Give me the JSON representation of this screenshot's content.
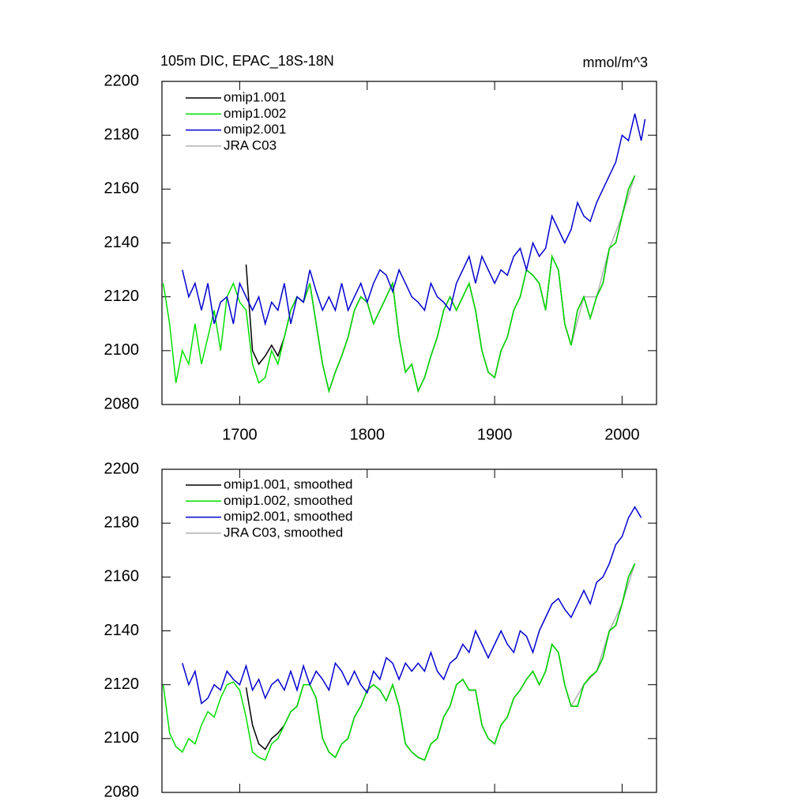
{
  "chart_data": [
    {
      "type": "line",
      "title": "105m DIC, EPAC_18S-18N",
      "units": "mmol/m^3",
      "xlim": [
        1639,
        2027
      ],
      "xticks": [
        1700,
        1800,
        1900,
        2000
      ],
      "ylim": [
        2080,
        2200
      ],
      "yticks": [
        2080,
        2100,
        2120,
        2140,
        2160,
        2180,
        2200
      ],
      "series": [
        {
          "name": "omip1.001",
          "color": "#000000",
          "x": [
            1705,
            1710,
            1715,
            1720,
            1725,
            1730,
            1735,
            1740,
            1745,
            1750,
            1755,
            1760,
            1765,
            1770,
            1775,
            1780,
            1785,
            1790,
            1795,
            1800,
            1805,
            1810,
            1815,
            1820,
            1825,
            1830,
            1835,
            1840,
            1845,
            1850,
            1855,
            1860,
            1865,
            1870,
            1875,
            1880,
            1885,
            1890,
            1895,
            1900,
            1905,
            1910,
            1915,
            1920,
            1925,
            1930,
            1935,
            1940,
            1945,
            1950,
            1955,
            1960,
            1965,
            1970,
            1975,
            1980,
            1985,
            1990,
            1995,
            2000,
            2005,
            2010
          ],
          "values": [
            2132,
            2100,
            2095,
            2098,
            2102,
            2098,
            2105,
            2115,
            2120,
            2118,
            2125,
            2110,
            2095,
            2085,
            2092,
            2098,
            2105,
            2115,
            2120,
            2118,
            2110,
            2115,
            2120,
            2125,
            2105,
            2092,
            2095,
            2085,
            2090,
            2098,
            2105,
            2115,
            2120,
            2115,
            2120,
            2125,
            2115,
            2100,
            2092,
            2090,
            2100,
            2105,
            2115,
            2120,
            2130,
            2128,
            2125,
            2115,
            2135,
            2130,
            2110,
            2102,
            2115,
            2120,
            2112,
            2120,
            2125,
            2138,
            2140,
            2150,
            2160,
            2165
          ]
        },
        {
          "name": "omip1.002",
          "color": "#00e000",
          "x": [
            1640,
            1645,
            1650,
            1655,
            1660,
            1665,
            1670,
            1675,
            1680,
            1685,
            1690,
            1695,
            1700,
            1705,
            1710,
            1715,
            1720,
            1725,
            1730,
            1735,
            1740,
            1745,
            1750,
            1755,
            1760,
            1765,
            1770,
            1775,
            1780,
            1785,
            1790,
            1795,
            1800,
            1805,
            1810,
            1815,
            1820,
            1825,
            1830,
            1835,
            1840,
            1845,
            1850,
            1855,
            1860,
            1865,
            1870,
            1875,
            1880,
            1885,
            1890,
            1895,
            1900,
            1905,
            1910,
            1915,
            1920,
            1925,
            1930,
            1935,
            1940,
            1945,
            1950,
            1955,
            1960,
            1965,
            1970,
            1975,
            1980,
            1985,
            1990,
            1995,
            2000,
            2005,
            2010
          ],
          "values": [
            2125,
            2110,
            2088,
            2100,
            2095,
            2110,
            2095,
            2105,
            2115,
            2100,
            2120,
            2125,
            2118,
            2115,
            2095,
            2088,
            2090,
            2100,
            2095,
            2105,
            2115,
            2120,
            2118,
            2125,
            2110,
            2095,
            2085,
            2092,
            2098,
            2105,
            2115,
            2120,
            2118,
            2110,
            2115,
            2120,
            2125,
            2105,
            2092,
            2095,
            2085,
            2090,
            2098,
            2105,
            2115,
            2120,
            2115,
            2120,
            2125,
            2115,
            2100,
            2092,
            2090,
            2100,
            2105,
            2115,
            2120,
            2130,
            2128,
            2125,
            2115,
            2135,
            2130,
            2110,
            2102,
            2115,
            2120,
            2112,
            2120,
            2125,
            2138,
            2140,
            2150,
            2160,
            2165
          ]
        },
        {
          "name": "omip2.001",
          "color": "#0000d0",
          "x": [
            1655,
            1660,
            1665,
            1670,
            1675,
            1680,
            1685,
            1690,
            1695,
            1700,
            1705,
            1710,
            1715,
            1720,
            1725,
            1730,
            1735,
            1740,
            1745,
            1750,
            1755,
            1760,
            1765,
            1770,
            1775,
            1780,
            1785,
            1790,
            1795,
            1800,
            1805,
            1810,
            1815,
            1820,
            1825,
            1830,
            1835,
            1840,
            1845,
            1850,
            1855,
            1860,
            1865,
            1870,
            1875,
            1880,
            1885,
            1890,
            1895,
            1900,
            1905,
            1910,
            1915,
            1920,
            1925,
            1930,
            1935,
            1940,
            1945,
            1950,
            1955,
            1960,
            1965,
            1970,
            1975,
            1980,
            1985,
            1990,
            1995,
            2000,
            2005,
            2010,
            2015,
            2018
          ],
          "values": [
            2130,
            2120,
            2125,
            2115,
            2125,
            2110,
            2118,
            2120,
            2110,
            2125,
            2120,
            2115,
            2120,
            2110,
            2118,
            2115,
            2125,
            2110,
            2120,
            2118,
            2130,
            2122,
            2115,
            2120,
            2115,
            2125,
            2115,
            2120,
            2125,
            2118,
            2125,
            2130,
            2128,
            2122,
            2130,
            2125,
            2120,
            2118,
            2115,
            2125,
            2120,
            2118,
            2115,
            2125,
            2130,
            2135,
            2125,
            2135,
            2130,
            2125,
            2130,
            2128,
            2135,
            2138,
            2130,
            2140,
            2135,
            2138,
            2150,
            2145,
            2140,
            2145,
            2155,
            2150,
            2148,
            2155,
            2160,
            2165,
            2170,
            2180,
            2178,
            2188,
            2178,
            2186
          ]
        },
        {
          "name": "JRA C03",
          "color": "#b0b0b0",
          "x": [
            1960,
            1970,
            1980,
            1990,
            2000,
            2010
          ],
          "values": [
            2102,
            2120,
            2120,
            2138,
            2150,
            2165
          ]
        }
      ]
    },
    {
      "type": "line",
      "xlim": [
        1639,
        2027
      ],
      "xticks": [
        1700,
        1800,
        1900,
        2000
      ],
      "ylim": [
        2080,
        2200
      ],
      "yticks": [
        2080,
        2100,
        2120,
        2140,
        2160,
        2180,
        2200
      ],
      "series": [
        {
          "name": "omip1.001, smoothed",
          "color": "#000000",
          "x": [
            1705,
            1710,
            1715,
            1720,
            1725,
            1730,
            1735,
            1740,
            1745,
            1750,
            1755,
            1760,
            1765,
            1770,
            1775,
            1780,
            1785,
            1790,
            1795,
            1800,
            1805,
            1810,
            1815,
            1820,
            1825,
            1830,
            1835,
            1840,
            1845,
            1850,
            1855,
            1860,
            1865,
            1870,
            1875,
            1880,
            1885,
            1890,
            1895,
            1900,
            1905,
            1910,
            1915,
            1920,
            1925,
            1930,
            1935,
            1940,
            1945,
            1950,
            1955,
            1960,
            1965,
            1970,
            1975,
            1980,
            1985,
            1990,
            1995,
            2000,
            2005,
            2010
          ],
          "values": [
            2119,
            2105,
            2098,
            2096,
            2100,
            2102,
            2105,
            2110,
            2112,
            2120,
            2120,
            2115,
            2100,
            2095,
            2093,
            2098,
            2100,
            2108,
            2112,
            2118,
            2120,
            2118,
            2114,
            2120,
            2112,
            2098,
            2095,
            2093,
            2092,
            2098,
            2100,
            2108,
            2112,
            2120,
            2122,
            2118,
            2118,
            2105,
            2100,
            2098,
            2105,
            2108,
            2115,
            2118,
            2122,
            2125,
            2120,
            2125,
            2135,
            2132,
            2120,
            2112,
            2112,
            2120,
            2123,
            2125,
            2130,
            2140,
            2142,
            2150,
            2160,
            2165
          ]
        },
        {
          "name": "omip1.002, smoothed",
          "color": "#00e000",
          "x": [
            1640,
            1645,
            1650,
            1655,
            1660,
            1665,
            1670,
            1675,
            1680,
            1685,
            1690,
            1695,
            1700,
            1705,
            1710,
            1715,
            1720,
            1725,
            1730,
            1735,
            1740,
            1745,
            1750,
            1755,
            1760,
            1765,
            1770,
            1775,
            1780,
            1785,
            1790,
            1795,
            1800,
            1805,
            1810,
            1815,
            1820,
            1825,
            1830,
            1835,
            1840,
            1845,
            1850,
            1855,
            1860,
            1865,
            1870,
            1875,
            1880,
            1885,
            1890,
            1895,
            1900,
            1905,
            1910,
            1915,
            1920,
            1925,
            1930,
            1935,
            1940,
            1945,
            1950,
            1955,
            1960,
            1965,
            1970,
            1975,
            1980,
            1985,
            1990,
            1995,
            2000,
            2005,
            2010
          ],
          "values": [
            2120,
            2102,
            2097,
            2095,
            2100,
            2098,
            2105,
            2110,
            2108,
            2115,
            2120,
            2121,
            2118,
            2108,
            2095,
            2093,
            2092,
            2098,
            2100,
            2105,
            2110,
            2112,
            2120,
            2120,
            2115,
            2100,
            2095,
            2093,
            2098,
            2100,
            2108,
            2112,
            2118,
            2120,
            2118,
            2114,
            2120,
            2112,
            2098,
            2095,
            2093,
            2092,
            2098,
            2100,
            2108,
            2112,
            2120,
            2122,
            2118,
            2118,
            2105,
            2100,
            2098,
            2105,
            2108,
            2115,
            2118,
            2122,
            2125,
            2120,
            2125,
            2135,
            2132,
            2120,
            2112,
            2112,
            2120,
            2123,
            2125,
            2130,
            2140,
            2142,
            2150,
            2160,
            2165
          ]
        },
        {
          "name": "omip2.001, smoothed",
          "color": "#0000d0",
          "x": [
            1655,
            1660,
            1665,
            1670,
            1675,
            1680,
            1685,
            1690,
            1695,
            1700,
            1705,
            1710,
            1715,
            1720,
            1725,
            1730,
            1735,
            1740,
            1745,
            1750,
            1755,
            1760,
            1765,
            1770,
            1775,
            1780,
            1785,
            1790,
            1795,
            1800,
            1805,
            1810,
            1815,
            1820,
            1825,
            1830,
            1835,
            1840,
            1845,
            1850,
            1855,
            1860,
            1865,
            1870,
            1875,
            1880,
            1885,
            1890,
            1895,
            1900,
            1905,
            1910,
            1915,
            1920,
            1925,
            1930,
            1935,
            1940,
            1945,
            1950,
            1955,
            1960,
            1965,
            1970,
            1975,
            1980,
            1985,
            1990,
            1995,
            2000,
            2005,
            2010,
            2015
          ],
          "values": [
            2128,
            2120,
            2125,
            2113,
            2115,
            2120,
            2118,
            2125,
            2122,
            2120,
            2127,
            2118,
            2122,
            2115,
            2120,
            2122,
            2118,
            2125,
            2118,
            2127,
            2120,
            2125,
            2122,
            2118,
            2128,
            2125,
            2120,
            2125,
            2120,
            2117,
            2125,
            2122,
            2130,
            2128,
            2122,
            2128,
            2125,
            2128,
            2125,
            2132,
            2125,
            2122,
            2128,
            2130,
            2135,
            2132,
            2140,
            2135,
            2130,
            2135,
            2140,
            2135,
            2132,
            2140,
            2138,
            2132,
            2140,
            2145,
            2150,
            2152,
            2148,
            2145,
            2150,
            2155,
            2150,
            2158,
            2160,
            2165,
            2172,
            2175,
            2182,
            2186,
            2182
          ]
        },
        {
          "name": "JRA C03, smoothed",
          "color": "#b0b0b0",
          "x": [
            1960,
            1970,
            1980,
            1990,
            2000,
            2010
          ],
          "values": [
            2112,
            2120,
            2125,
            2140,
            2150,
            2165
          ]
        }
      ]
    }
  ]
}
